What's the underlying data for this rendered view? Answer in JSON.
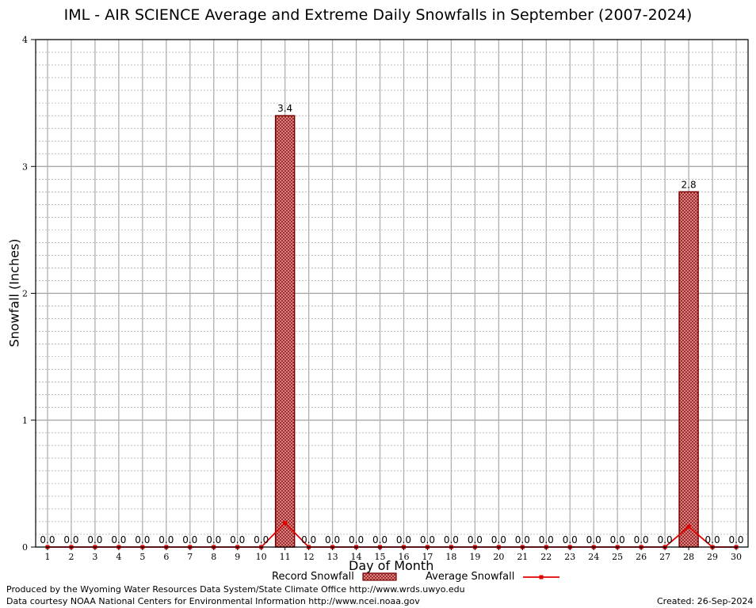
{
  "chart_data": {
    "type": "bar",
    "title": "IML - AIR SCIENCE Average and Extreme Daily Snowfalls in September (2007-2024)",
    "xlabel": "Day of Month",
    "ylabel": "Snowfall (Inches)",
    "ylim": [
      0,
      4
    ],
    "yticks": [
      "0",
      "1",
      "2",
      "3",
      "4"
    ],
    "categories": [
      "1",
      "2",
      "3",
      "4",
      "5",
      "6",
      "7",
      "8",
      "9",
      "10",
      "11",
      "12",
      "13",
      "14",
      "15",
      "16",
      "17",
      "18",
      "19",
      "20",
      "21",
      "22",
      "23",
      "24",
      "25",
      "26",
      "27",
      "28",
      "29",
      "30"
    ],
    "series": [
      {
        "name": "Record Snowfall",
        "kind": "bar",
        "color": "#a01010",
        "values": [
          0,
          0,
          0,
          0,
          0,
          0,
          0,
          0,
          0,
          0,
          3.4,
          0,
          0,
          0,
          0,
          0,
          0,
          0,
          0,
          0,
          0,
          0,
          0,
          0,
          0,
          0,
          0,
          2.8,
          0,
          0
        ],
        "labels": [
          "0.0",
          "0.0",
          "0.0",
          "0.0",
          "0.0",
          "0.0",
          "0.0",
          "0.0",
          "0.0",
          "0.0",
          "3.4",
          "0.0",
          "0.0",
          "0.0",
          "0.0",
          "0.0",
          "0.0",
          "0.0",
          "0.0",
          "0.0",
          "0.0",
          "0.0",
          "0.0",
          "0.0",
          "0.0",
          "0.0",
          "0.0",
          "2.8",
          "0.0",
          "0.0"
        ]
      },
      {
        "name": "Average Snowfall",
        "kind": "line",
        "color": "#e00000",
        "values": [
          0,
          0,
          0,
          0,
          0,
          0,
          0,
          0,
          0,
          0,
          0.19,
          0,
          0,
          0,
          0,
          0,
          0,
          0,
          0,
          0,
          0,
          0,
          0,
          0,
          0,
          0,
          0,
          0.16,
          0,
          0
        ]
      }
    ],
    "grid": true,
    "legend_position": "bottom-center"
  },
  "legend": {
    "record_label": "Record Snowfall",
    "average_label": "Average Snowfall"
  },
  "footer": {
    "produced_by": "Produced by the Wyoming Water Resources Data System/State Climate Office http://www.wrds.uwyo.edu",
    "data_courtesy": "Data courtesy NOAA National Centers for Environmental Information http://www.ncei.noaa.gov",
    "created": "Created:  26-Sep-2024"
  }
}
